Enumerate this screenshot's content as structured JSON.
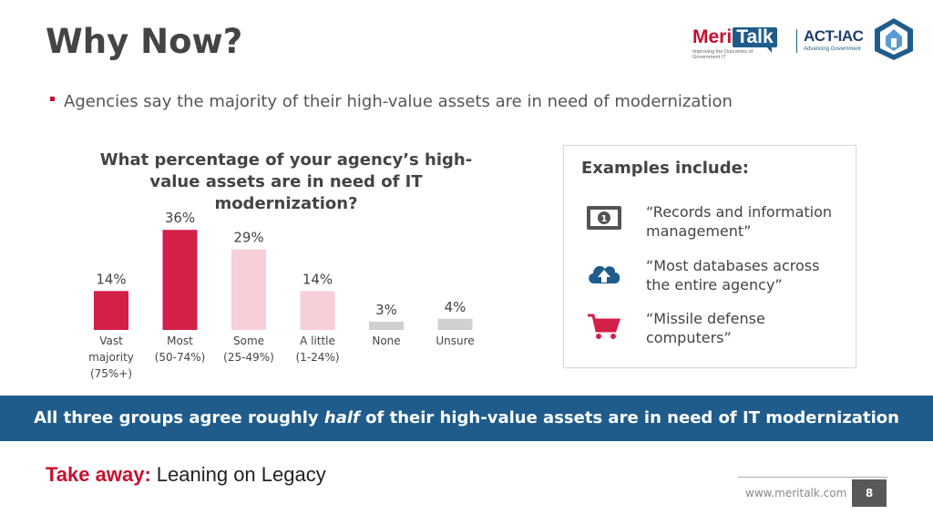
{
  "header": {
    "title": "Why Now?"
  },
  "logos": {
    "meritalk_meri": "Meri",
    "meritalk_talk": "Talk",
    "meritalk_tagline": "Improving the Outcomes of Government IT",
    "act_iac": "ACT-IAC",
    "act_iac_tagline": "Advancing Government"
  },
  "bullet": {
    "text": "Agencies say the majority of their high-value assets are in need of modernization"
  },
  "chart_data": {
    "type": "bar",
    "title": "What percentage of your agency’s high-value assets are in need of IT modernization?",
    "categories": [
      [
        "Vast",
        "majority",
        "(75%+)"
      ],
      [
        "Most",
        "(50-74%)"
      ],
      [
        "Some",
        "(25-49%)"
      ],
      [
        "A little",
        "(1-24%)"
      ],
      [
        "None"
      ],
      [
        "Unsure"
      ]
    ],
    "values": [
      14,
      36,
      29,
      14,
      3,
      4
    ],
    "value_labels": [
      "14%",
      "36%",
      "29%",
      "14%",
      "3%",
      "4%"
    ],
    "colors": [
      "#d41f48",
      "#d41f48",
      "#f7cfd9",
      "#f7cfd9",
      "#d0d0d0",
      "#d0d0d0"
    ],
    "ylim": [
      0,
      40
    ],
    "grid": false
  },
  "examples": {
    "heading": "Examples include:",
    "items": [
      {
        "icon": "money-icon",
        "text": "“Records and information management”"
      },
      {
        "icon": "cloud-upload-icon",
        "text": "“Most databases across the entire agency”"
      },
      {
        "icon": "shopping-cart-icon",
        "text": "“Missile defense computers”"
      }
    ]
  },
  "banner": {
    "before": "All three groups agree roughly ",
    "emph": "half",
    "after": " of their high-value assets are in need of IT modernization"
  },
  "takeaway": {
    "label": "Take away:",
    "text": "Leaning on Legacy"
  },
  "footer": {
    "url": "www.meritalk.com",
    "page": "8"
  },
  "colors": {
    "accent_red": "#c8102e",
    "brand_blue": "#1f5c8c",
    "icon_gray": "#545454"
  }
}
